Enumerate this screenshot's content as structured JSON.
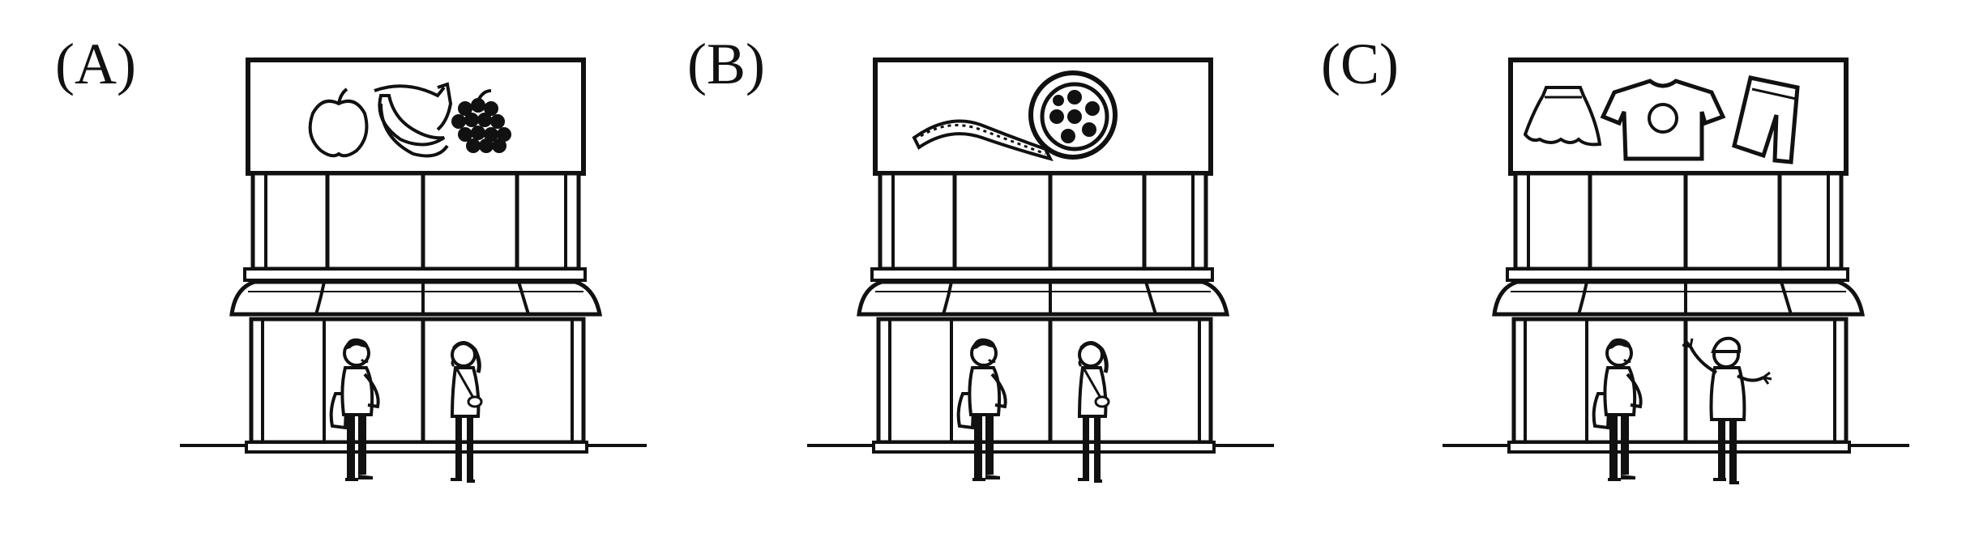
{
  "panels": [
    {
      "label": "(A)",
      "sign": "fruit",
      "people": "man-and-woman"
    },
    {
      "label": "(B)",
      "sign": "film-reel",
      "people": "man-and-woman"
    },
    {
      "label": "(C)",
      "sign": "clothing",
      "people": "man-and-waving-woman"
    }
  ],
  "colors": {
    "ink": "#111111",
    "background": "#ffffff"
  }
}
